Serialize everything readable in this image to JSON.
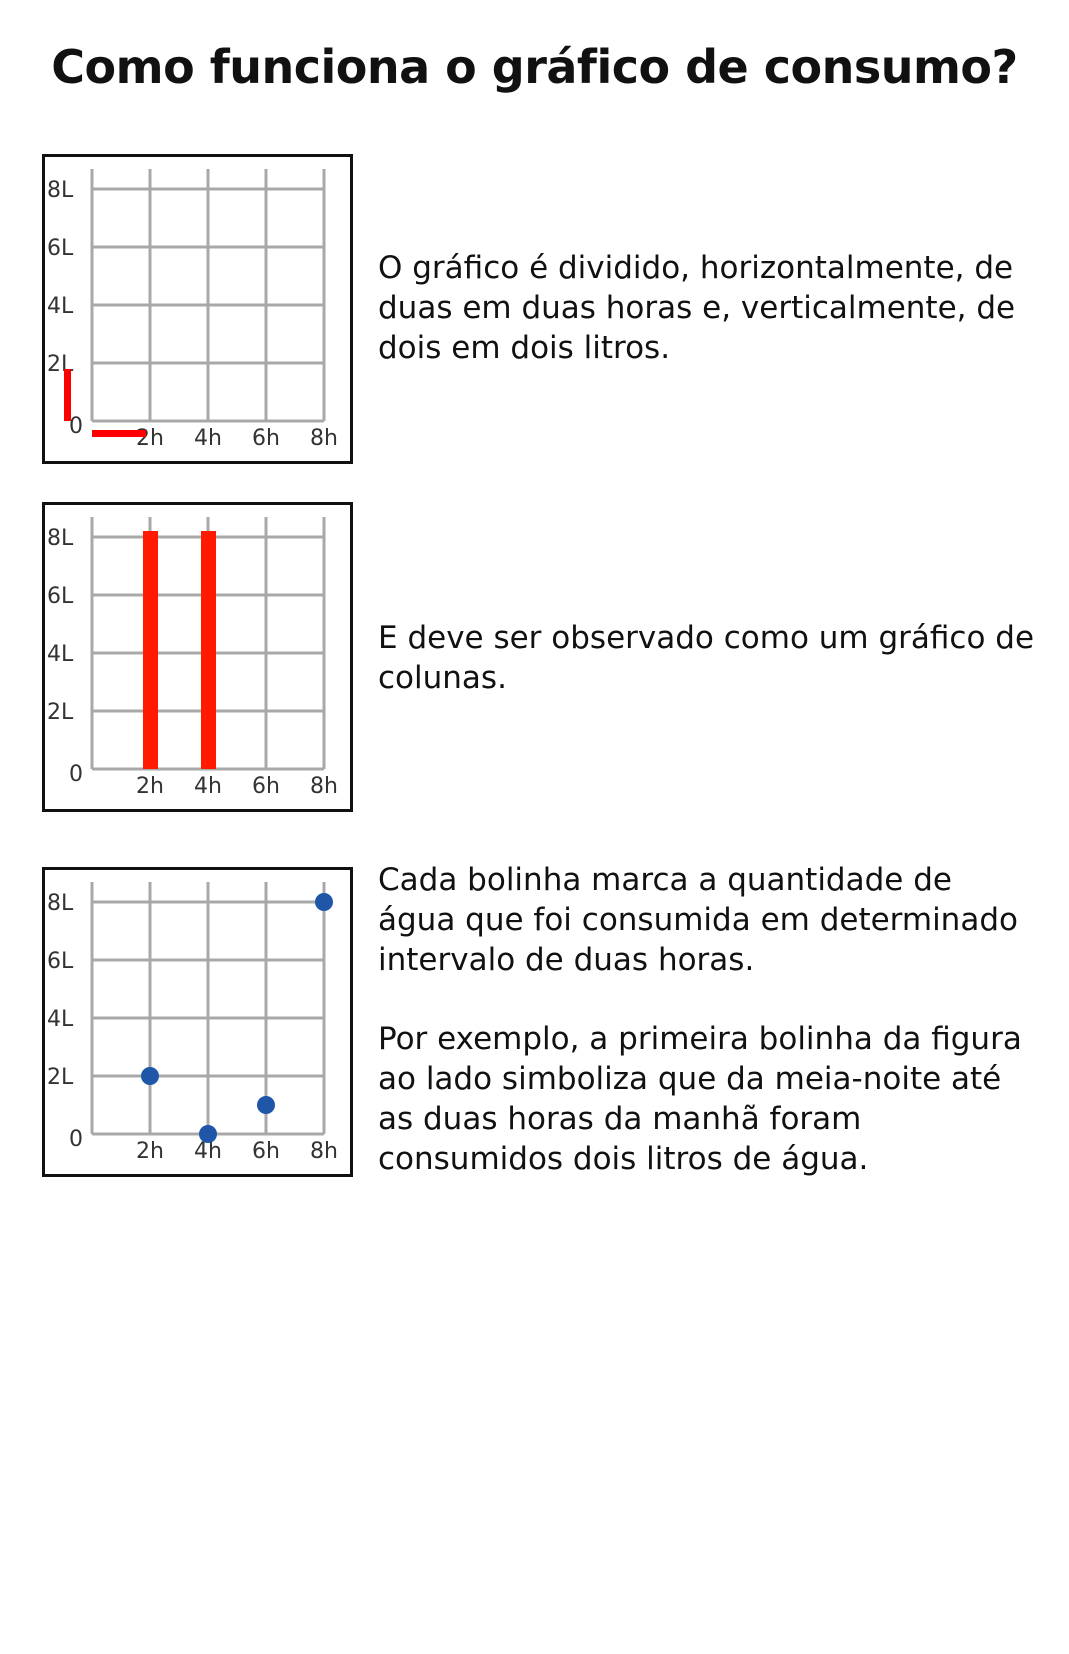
{
  "title": "Como funciona o gráfico de consumo?",
  "axes": {
    "y_ticks": [
      "0",
      "2L",
      "4L",
      "6L",
      "8L"
    ],
    "x_ticks": [
      "2h",
      "4h",
      "6h",
      "8h"
    ]
  },
  "colors": {
    "grid": "#a8a8a8",
    "highlight": "#ff0000",
    "bars": "#ff1a00",
    "dots": "#1f56a8"
  },
  "sections": [
    {
      "text": "O gráfico é dividido, horizontalmente, de duas em duas horas e, verticalmente, de dois em dois litros."
    },
    {
      "text": "E deve  ser observado como um gráfico de colunas."
    },
    {
      "text": "Cada bolinha marca a quantidade de água que foi consumida  em determinado intervalo de duas horas.",
      "example": "Por exemplo, a primeira bolinha da figura ao lado simboliza que da meia-noite até as duas horas da manhã foram consumidos dois litros de água."
    }
  ],
  "chart_data": [
    {
      "type": "line",
      "x_categories": [
        "2h",
        "4h",
        "6h",
        "8h"
      ],
      "y_ticks": [
        "0",
        "2L",
        "4L",
        "6L",
        "8L"
      ],
      "ylim": [
        0,
        8
      ],
      "grid": true,
      "highlight": "first interval on each axis"
    },
    {
      "type": "bar",
      "categories": [
        "2h",
        "4h",
        "6h",
        "8h"
      ],
      "values": [
        8,
        8,
        null,
        null
      ],
      "ylim": [
        0,
        8
      ],
      "grid": true
    },
    {
      "type": "scatter",
      "categories": [
        "2h",
        "4h",
        "6h",
        "8h"
      ],
      "values": [
        2,
        0,
        1,
        8
      ],
      "ylim": [
        0,
        8
      ],
      "grid": true
    }
  ]
}
